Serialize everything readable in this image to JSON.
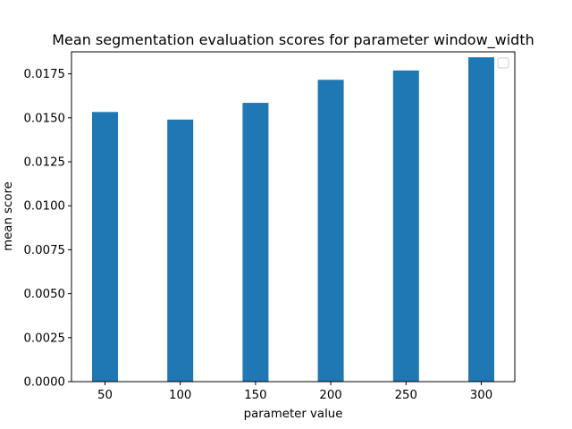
{
  "chart_data": {
    "type": "bar",
    "title": "Mean segmentation evaluation scores for parameter window_width",
    "xlabel": "parameter value",
    "ylabel": "mean score",
    "categories": [
      "50",
      "100",
      "150",
      "200",
      "250",
      "300"
    ],
    "values": [
      0.01533,
      0.0149,
      0.01585,
      0.01716,
      0.01769,
      0.01844
    ],
    "ylim": [
      0,
      0.01875
    ],
    "yticks": [
      "0.0000",
      "0.0025",
      "0.0050",
      "0.0075",
      "0.0100",
      "0.0125",
      "0.0150",
      "0.0175"
    ],
    "ytick_values": [
      0,
      0.0025,
      0.005,
      0.0075,
      0.01,
      0.0125,
      0.015,
      0.0175
    ],
    "grid": false,
    "legend": {
      "placement": "top-right",
      "entries": []
    },
    "colors": {
      "bar": "#1f77b4",
      "axis": "#000000",
      "background": "#ffffff"
    }
  }
}
